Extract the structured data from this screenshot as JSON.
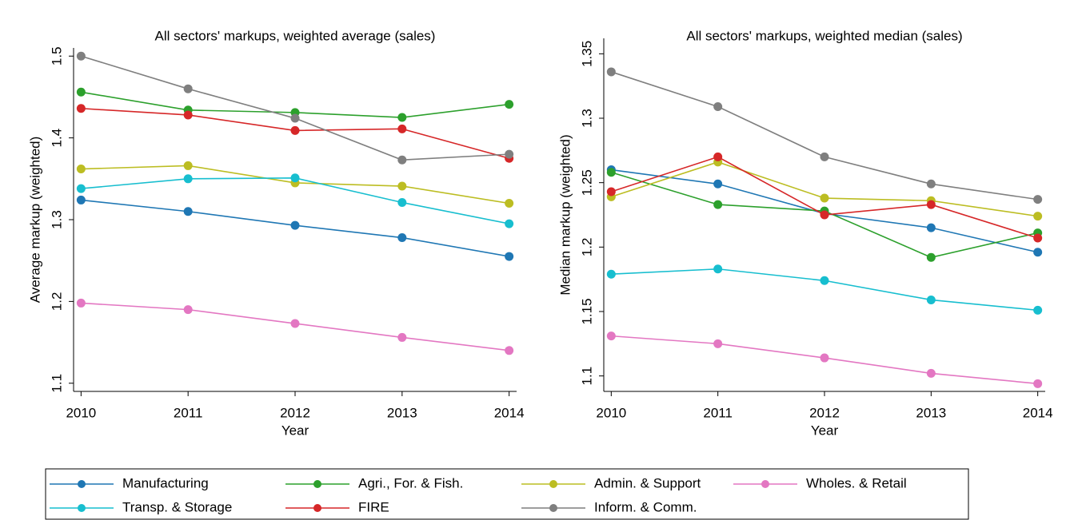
{
  "chart_data": [
    {
      "type": "line",
      "title": "All sectors' markups, weighted average (sales)",
      "xlabel": "Year",
      "ylabel": "Average markup (weighted)",
      "x": [
        2010,
        2011,
        2012,
        2013,
        2014
      ],
      "xlim": [
        2009.93,
        2014.07
      ],
      "xticks": [
        2010,
        2011,
        2012,
        2013,
        2014
      ],
      "ylim": [
        1.09,
        1.51
      ],
      "yticks": [
        1.1,
        1.2,
        1.3,
        1.4,
        1.5
      ],
      "series": [
        {
          "name": "Manufacturing",
          "color": "#1f77b4",
          "values": [
            1.324,
            1.31,
            1.293,
            1.278,
            1.255
          ]
        },
        {
          "name": "Agri., For. & Fish.",
          "color": "#2ca02c",
          "values": [
            1.456,
            1.434,
            1.431,
            1.425,
            1.441
          ]
        },
        {
          "name": "Admin. & Support",
          "color": "#bcbd22",
          "values": [
            1.362,
            1.366,
            1.345,
            1.341,
            1.32
          ]
        },
        {
          "name": "Wholes. & Retail",
          "color": "#e377c2",
          "values": [
            1.198,
            1.19,
            1.173,
            1.156,
            1.14
          ]
        },
        {
          "name": "Transp. & Storage",
          "color": "#17becf",
          "values": [
            1.338,
            1.35,
            1.351,
            1.321,
            1.295
          ]
        },
        {
          "name": "FIRE",
          "color": "#d62728",
          "values": [
            1.436,
            1.428,
            1.409,
            1.411,
            1.375
          ]
        },
        {
          "name": "Inform. & Comm.",
          "color": "#7f7f7f",
          "values": [
            1.5,
            1.46,
            1.424,
            1.373,
            1.38
          ]
        }
      ]
    },
    {
      "type": "line",
      "title": "All sectors' markups, weighted median (sales)",
      "xlabel": "Year",
      "ylabel": "Median markup (weighted)",
      "x": [
        2010,
        2011,
        2012,
        2013,
        2014
      ],
      "xlim": [
        2009.93,
        2014.07
      ],
      "xticks": [
        2010,
        2011,
        2012,
        2013,
        2014
      ],
      "ylim": [
        1.088,
        1.362
      ],
      "yticks": [
        1.1,
        1.15,
        1.2,
        1.25,
        1.3,
        1.35
      ],
      "series": [
        {
          "color": "#1f77b4",
          "values": [
            1.26,
            1.249,
            1.226,
            1.215,
            1.196
          ]
        },
        {
          "color": "#2ca02c",
          "values": [
            1.258,
            1.233,
            1.228,
            1.192,
            1.211
          ]
        },
        {
          "color": "#bcbd22",
          "values": [
            1.239,
            1.266,
            1.238,
            1.236,
            1.224
          ]
        },
        {
          "color": "#e377c2",
          "values": [
            1.131,
            1.125,
            1.114,
            1.102,
            1.094
          ]
        },
        {
          "color": "#17becf",
          "values": [
            1.179,
            1.183,
            1.174,
            1.159,
            1.151
          ]
        },
        {
          "color": "#d62728",
          "values": [
            1.243,
            1.27,
            1.225,
            1.233,
            1.207
          ]
        },
        {
          "color": "#7f7f7f",
          "values": [
            1.336,
            1.309,
            1.27,
            1.249,
            1.237
          ]
        }
      ]
    }
  ]
}
